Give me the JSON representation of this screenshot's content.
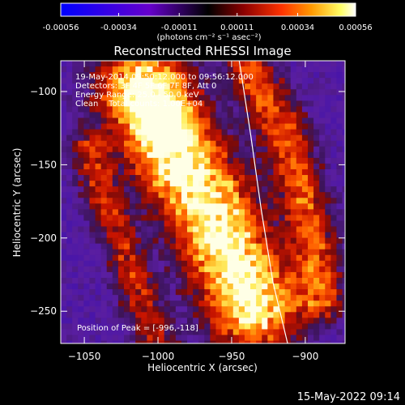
{
  "chart_data": {
    "type": "heatmap",
    "title": "Reconstructed RHESSI Image",
    "xlabel": "Heliocentric X (arcsec)",
    "ylabel": "Heliocentric Y (arcsec)",
    "xlim": [
      -1066,
      -873
    ],
    "ylim": [
      -272,
      -79
    ],
    "xticks": [
      -1050,
      -1000,
      -950,
      -900
    ],
    "yticks": [
      -100,
      -150,
      -200,
      -250
    ],
    "colorbar": {
      "ticks": [
        -0.00056,
        -0.00034,
        -0.00011,
        0.00011,
        0.00034,
        0.00056
      ],
      "tick_labels": [
        "-0.00056",
        "-0.00034",
        "-0.00011",
        "0.00011",
        "0.00034",
        "0.00056"
      ],
      "label": "(photons cm⁻² s⁻¹ asec⁻²)",
      "range": [
        -0.00056,
        0.00056
      ],
      "colormap_stops": [
        "#0000ff",
        "#6600cc",
        "#000000",
        "#8b0000",
        "#ff3300",
        "#ff9900",
        "#ffff66",
        "#ffffff"
      ]
    },
    "annotations": [
      "19-May-2014 09:50:12.000 to 09:56:12.000",
      "Detectors: 3F 4F 5F 6F 7F 8F, Att 0",
      "Energy Range: 25.0 - 50.0 keV",
      "Clean    Total counts: 1.00E+04"
    ],
    "peak_label": "Position of Peak = [-996,-118]",
    "peak": {
      "x": -996,
      "y": -118
    },
    "ridges": [
      {
        "name": "main",
        "points": [
          [
            -1010,
            -100
          ],
          [
            -990,
            -140
          ],
          [
            -965,
            -180
          ],
          [
            -950,
            -215
          ],
          [
            -935,
            -245
          ]
        ],
        "width": 30,
        "peak": 1.0
      },
      {
        "name": "right",
        "points": [
          [
            -938,
            -85
          ],
          [
            -918,
            -120
          ],
          [
            -905,
            -160
          ],
          [
            -895,
            -200
          ],
          [
            -890,
            -240
          ]
        ],
        "width": 17,
        "peak": 0.5
      },
      {
        "name": "left",
        "points": [
          [
            -1046,
            -140
          ],
          [
            -1036,
            -175
          ],
          [
            -1023,
            -210
          ],
          [
            -1010,
            -248
          ],
          [
            -1000,
            -270
          ]
        ],
        "width": 14,
        "peak": 0.38
      }
    ],
    "limb_curve": [
      [
        -945,
        -78
      ],
      [
        -937,
        -130
      ],
      [
        -930,
        -180
      ],
      [
        -922,
        -230
      ],
      [
        -912,
        -272
      ]
    ],
    "grid": false
  },
  "footer": {
    "timestamp": "15-May-2022 09:14"
  }
}
